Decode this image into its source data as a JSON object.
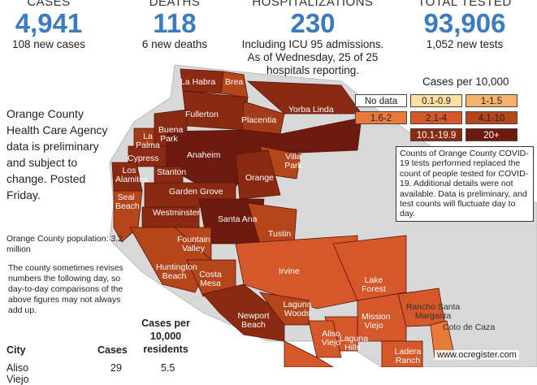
{
  "stats": [
    {
      "label": "CASES",
      "value": "4,941",
      "note": [
        "108 new cases"
      ]
    },
    {
      "label": "DEATHS",
      "value": "118",
      "note": [
        "6 new deaths"
      ]
    },
    {
      "label": "HOSPITALIZATIONS",
      "value": "230",
      "note": [
        "Including ICU 95 admissions.",
        "As of Wednesday, 25 of 25",
        "hospitals reporting."
      ]
    },
    {
      "label": "TOTAL TESTED",
      "value": "93,906",
      "note": [
        "1,052 new tests"
      ]
    }
  ],
  "legend": {
    "title": "Cases per 10,000",
    "items": [
      {
        "label": "No data",
        "color": "#ffffff"
      },
      {
        "label": "0.1-0.9",
        "color": "#fbe0a0"
      },
      {
        "label": "1-1.5",
        "color": "#f4b26a"
      },
      {
        "label": "1.6-2",
        "color": "#e87a3a"
      },
      {
        "label": "2.1-4",
        "color": "#d4582a"
      },
      {
        "label": "4.1-10",
        "color": "#b5451b"
      },
      {
        "label": "10.1-19.9",
        "color": "#8b2a12"
      },
      {
        "label": "20+",
        "color": "#6e1a0f"
      }
    ]
  },
  "side_note": "Orange County Health Care Agency data is preliminary and subject to change. Posted Friday.",
  "population": "Orange County population: 3.2 million",
  "revision_note": "The county sometimes revises numbers the following day, so day-to-day comparisons of the above figures may not always add up.",
  "test_note": "Counts of Orange County COVID-19 tests performed replaced the count of people tested for COVID-19. Additional details were not available. Data is preliminary, and test counts will fluctuate day to day.",
  "table": {
    "header": [
      "City",
      "Cases",
      "Cases per 10,000 residents"
    ],
    "rows": [
      [
        "Aliso Viejo",
        "29",
        "5.5"
      ]
    ]
  },
  "map": {
    "cities": [
      "La Habra",
      "Brea",
      "Fullerton",
      "Yorba Linda",
      "Buena Park",
      "Placentia",
      "La Palma",
      "Cypress",
      "Anaheim",
      "Villa Park",
      "Los Alamitos",
      "Stanton",
      "Orange",
      "Seal Beach",
      "Garden Grove",
      "Westminster",
      "Santa Ana",
      "Tustin",
      "Fountain Valley",
      "Huntington Beach",
      "Costa Mesa",
      "Irvine",
      "Lake Forest",
      "Newport Beach",
      "Laguna Woods",
      "Mission Viejo",
      "Rancho Santa Margarita",
      "Coto de Caza",
      "Aliso Viejo",
      "Laguna Hills",
      "Ladera Ranch"
    ]
  },
  "credit": "www.ocregister.com"
}
